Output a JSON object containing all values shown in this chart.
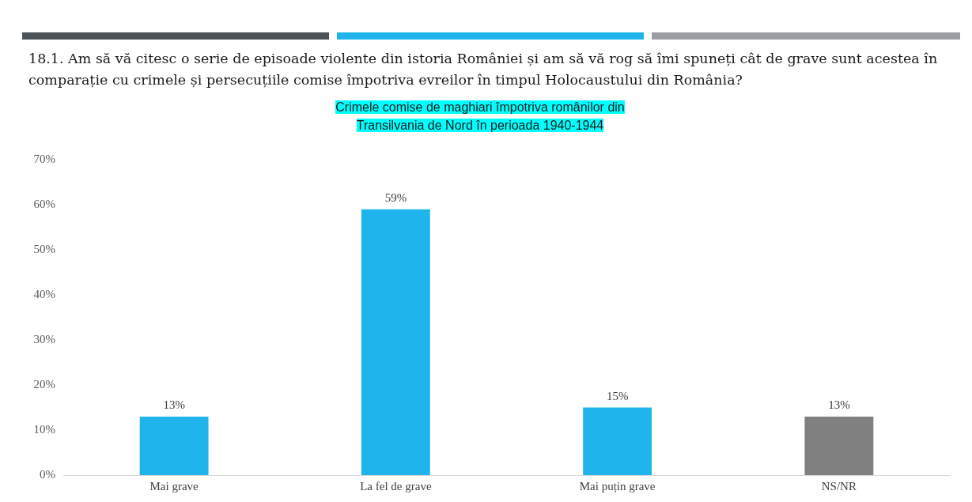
{
  "chart_data": {
    "type": "bar",
    "title": "18.1. Am să vă citesc o serie de episoade violente din istoria României și am să vă rog să îmi spuneți cât de grave sunt acestea în comparație cu crimele și persecuțiile comise împotriva evreilor în timpul Holocaustului din România?",
    "subtitle": "Crimele comise de maghiari împotriva românilor din Transilvania de Nord în perioada 1940-1944",
    "categories": [
      "Mai grave",
      "La fel de grave",
      "Mai puțin grave",
      "NS/NR"
    ],
    "values": [
      13,
      59,
      15,
      13
    ],
    "colors": [
      "#1fb5ec",
      "#1fb5ec",
      "#1fb5ec",
      "#808080"
    ],
    "value_labels": [
      "13%",
      "59%",
      "15%",
      "13%"
    ],
    "ylim": [
      0,
      70
    ],
    "yticks": [
      {
        "value": 0,
        "label": "0%"
      },
      {
        "value": 10,
        "label": "10%"
      },
      {
        "value": 20,
        "label": "20%"
      },
      {
        "value": 30,
        "label": "30%"
      },
      {
        "value": 40,
        "label": "40%"
      },
      {
        "value": 50,
        "label": "50%"
      },
      {
        "value": 60,
        "label": "60%"
      },
      {
        "value": 70,
        "label": "70%"
      }
    ],
    "grid": false,
    "legend": false
  }
}
